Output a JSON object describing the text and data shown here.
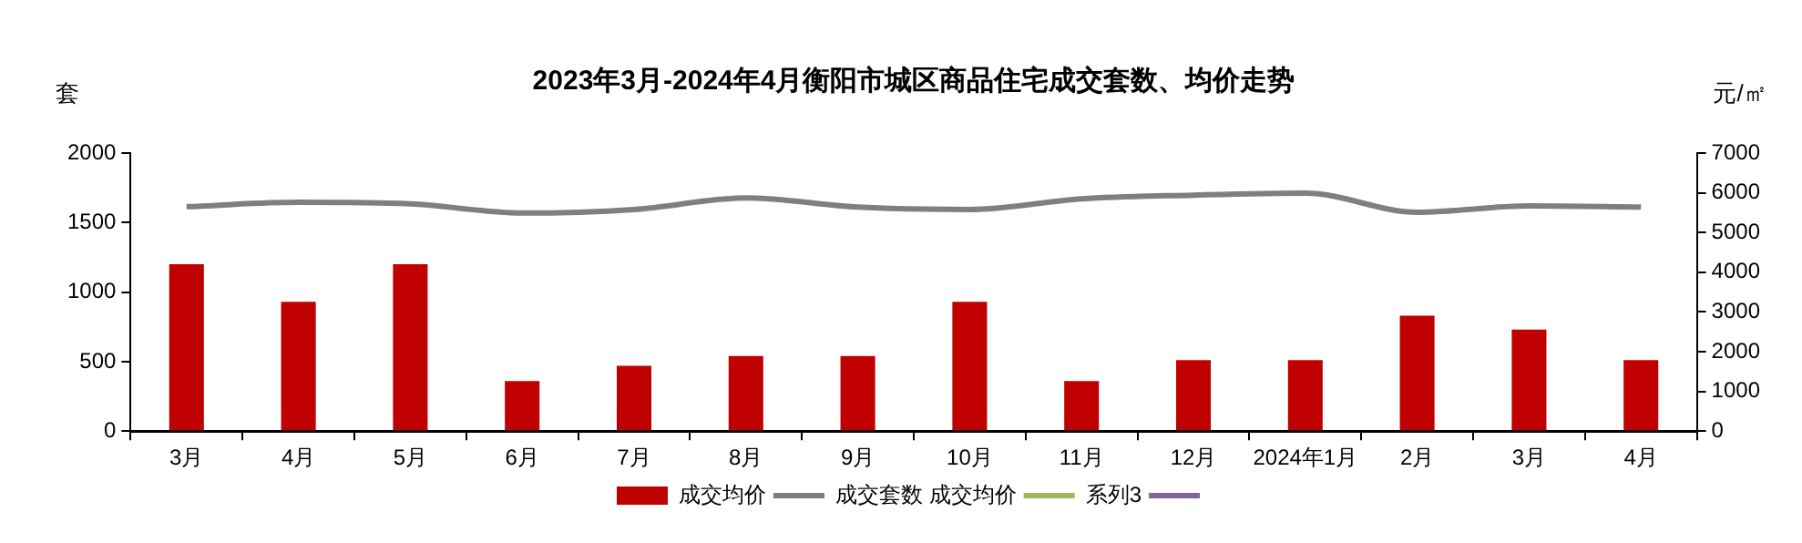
{
  "chart_data": {
    "type": "bar",
    "title": "2023年3月-2024年4月衡阳市城区商品住宅成交套数、均价走势",
    "ylabel": "套",
    "y2label": "元/㎡",
    "categories": [
      "3月",
      "4月",
      "5月",
      "6月",
      "7月",
      "8月",
      "9月",
      "10月",
      "11月",
      "12月",
      "2024年1月",
      "2月",
      "3月",
      "4月"
    ],
    "series": [
      {
        "name": "成交均价",
        "color": "#c00000",
        "values": [
          1200,
          930,
          1200,
          360,
          470,
          540,
          540,
          930,
          360,
          510,
          510,
          830,
          730,
          510
        ]
      },
      {
        "name": "成交套数 成交均价",
        "type": "line",
        "axis": "y2",
        "color": "#7f7f7f",
        "values": [
          5650,
          5760,
          5720,
          5490,
          5580,
          5870,
          5640,
          5580,
          5850,
          5940,
          5990,
          5510,
          5670,
          5640
        ]
      },
      {
        "name": "系列3",
        "type": "line",
        "axis": "y2",
        "color": "#9bbb59",
        "values": [
          null,
          null,
          null,
          null,
          null,
          null,
          null,
          null,
          null,
          null,
          null,
          null,
          null,
          null
        ]
      },
      {
        "type": "line",
        "axis": "y2",
        "color": "#8064a2",
        "values": [
          null,
          null,
          null,
          null,
          null,
          null,
          null,
          null,
          null,
          null,
          null,
          null,
          null,
          null
        ]
      }
    ],
    "ylim": [
      0,
      2000
    ],
    "yticks": [
      0,
      500,
      1000,
      1500,
      2000
    ],
    "y2lim": [
      0,
      7000
    ],
    "y2ticks": [
      0,
      1000,
      2000,
      3000,
      4000,
      5000,
      6000,
      7000
    ],
    "grid": false,
    "legend": "bottom",
    "marker": "none",
    "line_style": "solid"
  }
}
